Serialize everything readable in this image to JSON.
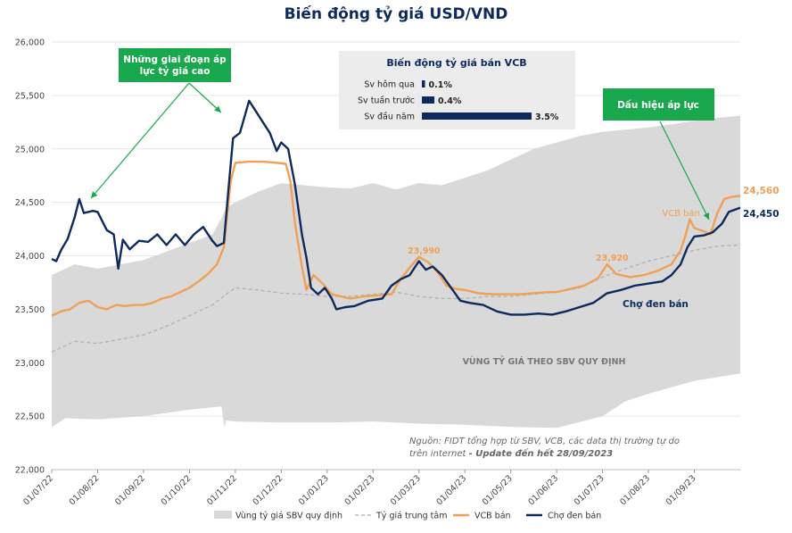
{
  "title": "Biến động tỷ giá USD/VND",
  "colors": {
    "band": "#d9d9d9",
    "center": "#b0b0b0",
    "vcb": "#f0a055",
    "black_market": "#0d2a5c",
    "callout": "#1aa84e",
    "inset_bar": "#0d2a5c"
  },
  "chart_data": {
    "type": "line",
    "title": "Biến động tỷ giá USD/VND",
    "xlabel": "",
    "ylabel": "",
    "ylim": [
      22000,
      26000
    ],
    "yticks": [
      22000,
      22500,
      23000,
      23500,
      24000,
      24500,
      25000,
      25500,
      26000
    ],
    "yticklabels": [
      "22,000",
      "22,500",
      "23,000",
      "23,500",
      "24,000",
      "24,500",
      "25,000",
      "25,500",
      "26,000"
    ],
    "xticklabels": [
      "01/07/22",
      "01/08/22",
      "01/09/22",
      "01/10/22",
      "01/11/22",
      "01/12/22",
      "01/01/23",
      "01/02/23",
      "01/03/23",
      "01/04/23",
      "01/05/23",
      "01/06/23",
      "01/07/23",
      "01/08/23",
      "01/09/23"
    ],
    "x_range_months": [
      0,
      15
    ],
    "band_lower": [
      [
        0.0,
        22400
      ],
      [
        0.3,
        22480
      ],
      [
        1,
        22470
      ],
      [
        2,
        22500
      ],
      [
        3,
        22560
      ],
      [
        3.7,
        22590
      ],
      [
        3.76,
        22400
      ],
      [
        3.8,
        22460
      ],
      [
        4,
        22450
      ],
      [
        5,
        22440
      ],
      [
        6,
        22440
      ],
      [
        7,
        22450
      ],
      [
        8,
        22430
      ],
      [
        9,
        22420
      ],
      [
        10,
        22400
      ],
      [
        11,
        22390
      ],
      [
        12,
        22500
      ],
      [
        12.5,
        22640
      ],
      [
        13,
        22710
      ],
      [
        14,
        22830
      ],
      [
        15,
        22900
      ]
    ],
    "band_upper": [
      [
        0.0,
        23820
      ],
      [
        0.5,
        23920
      ],
      [
        1,
        23880
      ],
      [
        1.5,
        23920
      ],
      [
        2,
        23960
      ],
      [
        2.5,
        24040
      ],
      [
        3,
        24120
      ],
      [
        3.5,
        24200
      ],
      [
        3.7,
        24350
      ],
      [
        3.8,
        24450
      ],
      [
        4,
        24500
      ],
      [
        4.5,
        24600
      ],
      [
        5,
        24680
      ],
      [
        5.5,
        24660
      ],
      [
        6,
        24640
      ],
      [
        6.5,
        24630
      ],
      [
        7,
        24680
      ],
      [
        7.5,
        24620
      ],
      [
        8,
        24680
      ],
      [
        8.5,
        24660
      ],
      [
        9,
        24730
      ],
      [
        9.5,
        24800
      ],
      [
        10,
        24900
      ],
      [
        10.5,
        25000
      ],
      [
        11,
        25060
      ],
      [
        11.5,
        25120
      ],
      [
        12,
        25160
      ],
      [
        12.5,
        25180
      ],
      [
        13,
        25200
      ],
      [
        13.5,
        25230
      ],
      [
        14,
        25260
      ],
      [
        14.5,
        25290
      ],
      [
        15,
        25310
      ]
    ],
    "center_rate": [
      [
        0.0,
        23100
      ],
      [
        0.5,
        23200
      ],
      [
        1,
        23180
      ],
      [
        1.5,
        23220
      ],
      [
        2,
        23260
      ],
      [
        2.5,
        23340
      ],
      [
        3,
        23440
      ],
      [
        3.5,
        23540
      ],
      [
        3.8,
        23640
      ],
      [
        4,
        23700
      ],
      [
        4.5,
        23680
      ],
      [
        5,
        23650
      ],
      [
        5.5,
        23640
      ],
      [
        6,
        23620
      ],
      [
        6.5,
        23620
      ],
      [
        7,
        23640
      ],
      [
        7.5,
        23660
      ],
      [
        8,
        23620
      ],
      [
        8.5,
        23600
      ],
      [
        9,
        23600
      ],
      [
        9.5,
        23620
      ],
      [
        10,
        23620
      ],
      [
        10.5,
        23640
      ],
      [
        11,
        23660
      ],
      [
        11.5,
        23700
      ],
      [
        12,
        23800
      ],
      [
        12.5,
        23880
      ],
      [
        13,
        23950
      ],
      [
        13.5,
        24000
      ],
      [
        14,
        24050
      ],
      [
        14.5,
        24090
      ],
      [
        15,
        24100
      ]
    ],
    "series": [
      {
        "name": "VCB bán",
        "values": [
          [
            0.0,
            23440
          ],
          [
            0.2,
            23480
          ],
          [
            0.4,
            23500
          ],
          [
            0.6,
            23560
          ],
          [
            0.8,
            23580
          ],
          [
            1.0,
            23520
          ],
          [
            1.2,
            23500
          ],
          [
            1.4,
            23540
          ],
          [
            1.6,
            23530
          ],
          [
            1.8,
            23540
          ],
          [
            2.0,
            23540
          ],
          [
            2.2,
            23560
          ],
          [
            2.4,
            23600
          ],
          [
            2.6,
            23620
          ],
          [
            2.8,
            23660
          ],
          [
            3.0,
            23700
          ],
          [
            3.2,
            23760
          ],
          [
            3.4,
            23830
          ],
          [
            3.6,
            23920
          ],
          [
            3.75,
            24080
          ],
          [
            3.8,
            24300
          ],
          [
            3.9,
            24700
          ],
          [
            4.0,
            24870
          ],
          [
            4.3,
            24880
          ],
          [
            4.6,
            24880
          ],
          [
            4.9,
            24870
          ],
          [
            5.1,
            24860
          ],
          [
            5.2,
            24700
          ],
          [
            5.3,
            24300
          ],
          [
            5.45,
            23900
          ],
          [
            5.55,
            23680
          ],
          [
            5.7,
            23820
          ],
          [
            5.9,
            23740
          ],
          [
            6.1,
            23640
          ],
          [
            6.3,
            23620
          ],
          [
            6.5,
            23600
          ],
          [
            6.8,
            23620
          ],
          [
            7.1,
            23630
          ],
          [
            7.4,
            23640
          ],
          [
            7.6,
            23780
          ],
          [
            7.8,
            23890
          ],
          [
            8.0,
            23990
          ],
          [
            8.2,
            23940
          ],
          [
            8.4,
            23850
          ],
          [
            8.6,
            23720
          ],
          [
            8.8,
            23690
          ],
          [
            9.0,
            23680
          ],
          [
            9.3,
            23650
          ],
          [
            9.6,
            23640
          ],
          [
            9.9,
            23640
          ],
          [
            10.2,
            23640
          ],
          [
            10.5,
            23650
          ],
          [
            10.8,
            23660
          ],
          [
            11.0,
            23660
          ],
          [
            11.3,
            23690
          ],
          [
            11.6,
            23720
          ],
          [
            11.9,
            23790
          ],
          [
            12.1,
            23920
          ],
          [
            12.3,
            23830
          ],
          [
            12.6,
            23800
          ],
          [
            12.9,
            23820
          ],
          [
            13.2,
            23860
          ],
          [
            13.5,
            23920
          ],
          [
            13.7,
            24050
          ],
          [
            13.8,
            24180
          ],
          [
            13.9,
            24340
          ],
          [
            14.0,
            24260
          ],
          [
            14.2,
            24230
          ],
          [
            14.35,
            24200
          ],
          [
            14.5,
            24400
          ],
          [
            14.65,
            24530
          ],
          [
            14.8,
            24550
          ],
          [
            15.0,
            24560
          ]
        ]
      },
      {
        "name": "Chợ đen bán",
        "values": [
          [
            0.0,
            23970
          ],
          [
            0.1,
            23950
          ],
          [
            0.2,
            24050
          ],
          [
            0.35,
            24160
          ],
          [
            0.5,
            24360
          ],
          [
            0.6,
            24530
          ],
          [
            0.7,
            24400
          ],
          [
            0.9,
            24420
          ],
          [
            1.0,
            24410
          ],
          [
            1.2,
            24240
          ],
          [
            1.35,
            24200
          ],
          [
            1.45,
            23880
          ],
          [
            1.55,
            24150
          ],
          [
            1.7,
            24060
          ],
          [
            1.9,
            24140
          ],
          [
            2.1,
            24130
          ],
          [
            2.3,
            24200
          ],
          [
            2.5,
            24100
          ],
          [
            2.7,
            24200
          ],
          [
            2.9,
            24100
          ],
          [
            3.1,
            24200
          ],
          [
            3.3,
            24270
          ],
          [
            3.5,
            24140
          ],
          [
            3.6,
            24090
          ],
          [
            3.75,
            24120
          ],
          [
            3.85,
            24620
          ],
          [
            3.95,
            25100
          ],
          [
            4.1,
            25150
          ],
          [
            4.3,
            25450
          ],
          [
            4.45,
            25350
          ],
          [
            4.6,
            25250
          ],
          [
            4.75,
            25150
          ],
          [
            4.9,
            24980
          ],
          [
            5.0,
            25060
          ],
          [
            5.15,
            25000
          ],
          [
            5.3,
            24660
          ],
          [
            5.45,
            24200
          ],
          [
            5.55,
            23980
          ],
          [
            5.65,
            23700
          ],
          [
            5.8,
            23640
          ],
          [
            5.95,
            23700
          ],
          [
            6.1,
            23600
          ],
          [
            6.2,
            23500
          ],
          [
            6.4,
            23520
          ],
          [
            6.6,
            23530
          ],
          [
            6.9,
            23580
          ],
          [
            7.2,
            23600
          ],
          [
            7.4,
            23720
          ],
          [
            7.6,
            23780
          ],
          [
            7.8,
            23820
          ],
          [
            8.0,
            23950
          ],
          [
            8.15,
            23870
          ],
          [
            8.3,
            23900
          ],
          [
            8.5,
            23820
          ],
          [
            8.7,
            23700
          ],
          [
            8.9,
            23580
          ],
          [
            9.1,
            23560
          ],
          [
            9.4,
            23540
          ],
          [
            9.7,
            23480
          ],
          [
            10.0,
            23450
          ],
          [
            10.3,
            23450
          ],
          [
            10.6,
            23460
          ],
          [
            10.9,
            23450
          ],
          [
            11.2,
            23480
          ],
          [
            11.5,
            23520
          ],
          [
            11.8,
            23560
          ],
          [
            12.1,
            23650
          ],
          [
            12.4,
            23680
          ],
          [
            12.7,
            23720
          ],
          [
            13.0,
            23740
          ],
          [
            13.3,
            23760
          ],
          [
            13.5,
            23820
          ],
          [
            13.7,
            23920
          ],
          [
            13.85,
            24080
          ],
          [
            14.0,
            24180
          ],
          [
            14.2,
            24190
          ],
          [
            14.4,
            24220
          ],
          [
            14.6,
            24300
          ],
          [
            14.75,
            24410
          ],
          [
            15.0,
            24450
          ]
        ]
      }
    ],
    "series_center_name": "Tỷ giá trung tâm",
    "band_name": "Vùng tỷ giá SBV quy định"
  },
  "annotations": {
    "band_text": "VÙNG TỶ GIÁ THEO SBV QUY ĐỊNH",
    "vcb_label": "VCB bán",
    "black_label": "Chợ đen bán",
    "vcb_last": "24,560",
    "black_last": "24,450",
    "peak_mar": "23,990",
    "peak_jul": "23,920"
  },
  "callouts": {
    "pressure_periods": "Những giai đoạn áp\nlực tỷ giá cao",
    "pressure_signal": "Dấu hiệu áp lực"
  },
  "inset": {
    "title": "Biến động tỷ giá bán VCB",
    "rows": [
      {
        "label": "Sv hôm qua",
        "pct": 0.1,
        "value": "0.1%"
      },
      {
        "label": "Sv tuần trước",
        "pct": 0.4,
        "value": "0.4%"
      },
      {
        "label": "Sv đầu năm",
        "pct": 3.5,
        "value": "3.5%"
      }
    ]
  },
  "source": {
    "line1": "Nguồn: FIDT tổng hợp từ SBV, VCB, các data thị trường tự do",
    "line2": "trên internet",
    "update": "- Update đến hết 28/09/2023"
  },
  "legend": [
    {
      "key": "band",
      "label": "Vùng tỷ giá SBV quy định"
    },
    {
      "key": "center",
      "label": "Tỷ giá trung tâm"
    },
    {
      "key": "vcb",
      "label": "VCB bán"
    },
    {
      "key": "black_market",
      "label": "Chợ đen bán"
    }
  ]
}
